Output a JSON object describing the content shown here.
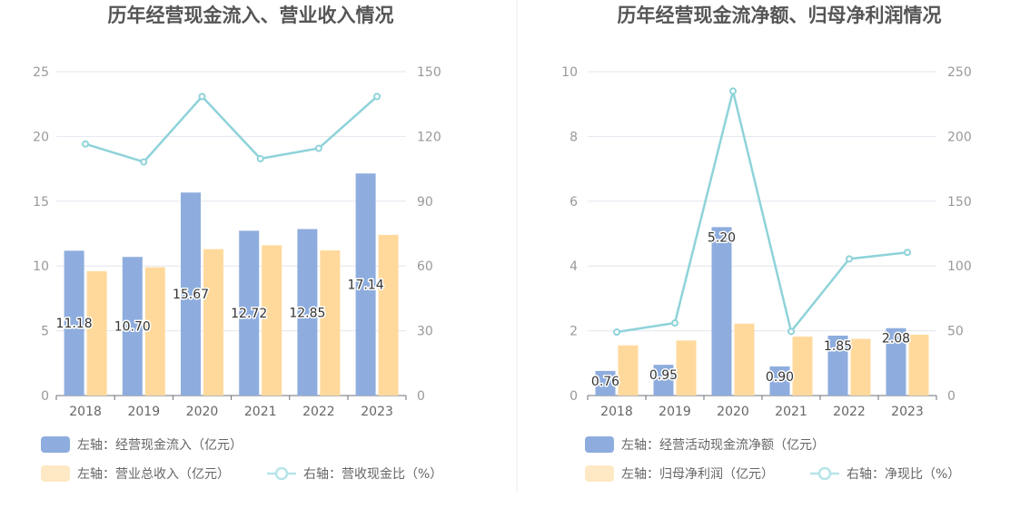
{
  "chart_data": [
    {
      "type": "bar",
      "title": "历年经营现金流入、营业收入情况",
      "categories": [
        "2018",
        "2019",
        "2020",
        "2021",
        "2022",
        "2023"
      ],
      "ylim_left": [
        0,
        25
      ],
      "yticks_left": [
        "0",
        "5",
        "10",
        "15",
        "20",
        "25"
      ],
      "ylim_right": [
        0,
        150
      ],
      "yticks_right": [
        "0",
        "30",
        "60",
        "90",
        "120",
        "150"
      ],
      "grid": true,
      "series": [
        {
          "name": "左轴：经营现金流入（亿元）",
          "kind": "bar",
          "axis": "left",
          "color": "#8eadde",
          "values": [
            11.18,
            10.7,
            15.67,
            12.72,
            12.85,
            17.14
          ],
          "labels": [
            "11.18",
            "10.70",
            "15.67",
            "12.72",
            "12.85",
            "17.14"
          ]
        },
        {
          "name": "左轴：营业总收入（亿元）",
          "kind": "bar",
          "axis": "left",
          "color": "#ffd99c",
          "values": [
            9.6,
            9.9,
            11.3,
            11.6,
            11.2,
            12.4
          ]
        },
        {
          "name": "右轴：营收现金比（%）",
          "kind": "line",
          "axis": "right",
          "color": "#8ed3d9",
          "values": [
            116.5,
            108.2,
            138.5,
            109.7,
            114.5,
            138.5
          ]
        }
      ]
    },
    {
      "type": "bar",
      "title": "历年经营现金流净额、归母净利润情况",
      "categories": [
        "2018",
        "2019",
        "2020",
        "2021",
        "2022",
        "2023"
      ],
      "ylim_left": [
        0,
        10
      ],
      "yticks_left": [
        "0",
        "2",
        "4",
        "6",
        "8",
        "10"
      ],
      "ylim_right": [
        0,
        250
      ],
      "yticks_right": [
        "0",
        "50",
        "100",
        "150",
        "200",
        "250"
      ],
      "grid": true,
      "series": [
        {
          "name": "左轴：经营活动现金流净额（亿元）",
          "kind": "bar",
          "axis": "left",
          "color": "#8eadde",
          "values": [
            0.76,
            0.95,
            5.2,
            0.9,
            1.85,
            2.08
          ],
          "labels": [
            "0.76",
            "0.95",
            "5.20",
            "0.90",
            "1.85",
            "2.08"
          ]
        },
        {
          "name": "左轴：归母净利润（亿元）",
          "kind": "bar",
          "axis": "left",
          "color": "#ffd99c",
          "values": [
            1.55,
            1.7,
            2.22,
            1.82,
            1.75,
            1.88
          ]
        },
        {
          "name": "右轴：净现比（%）",
          "kind": "line",
          "axis": "right",
          "color": "#8ed3d9",
          "values": [
            49.0,
            56.0,
            235.0,
            49.5,
            105.5,
            110.5
          ]
        }
      ]
    }
  ]
}
